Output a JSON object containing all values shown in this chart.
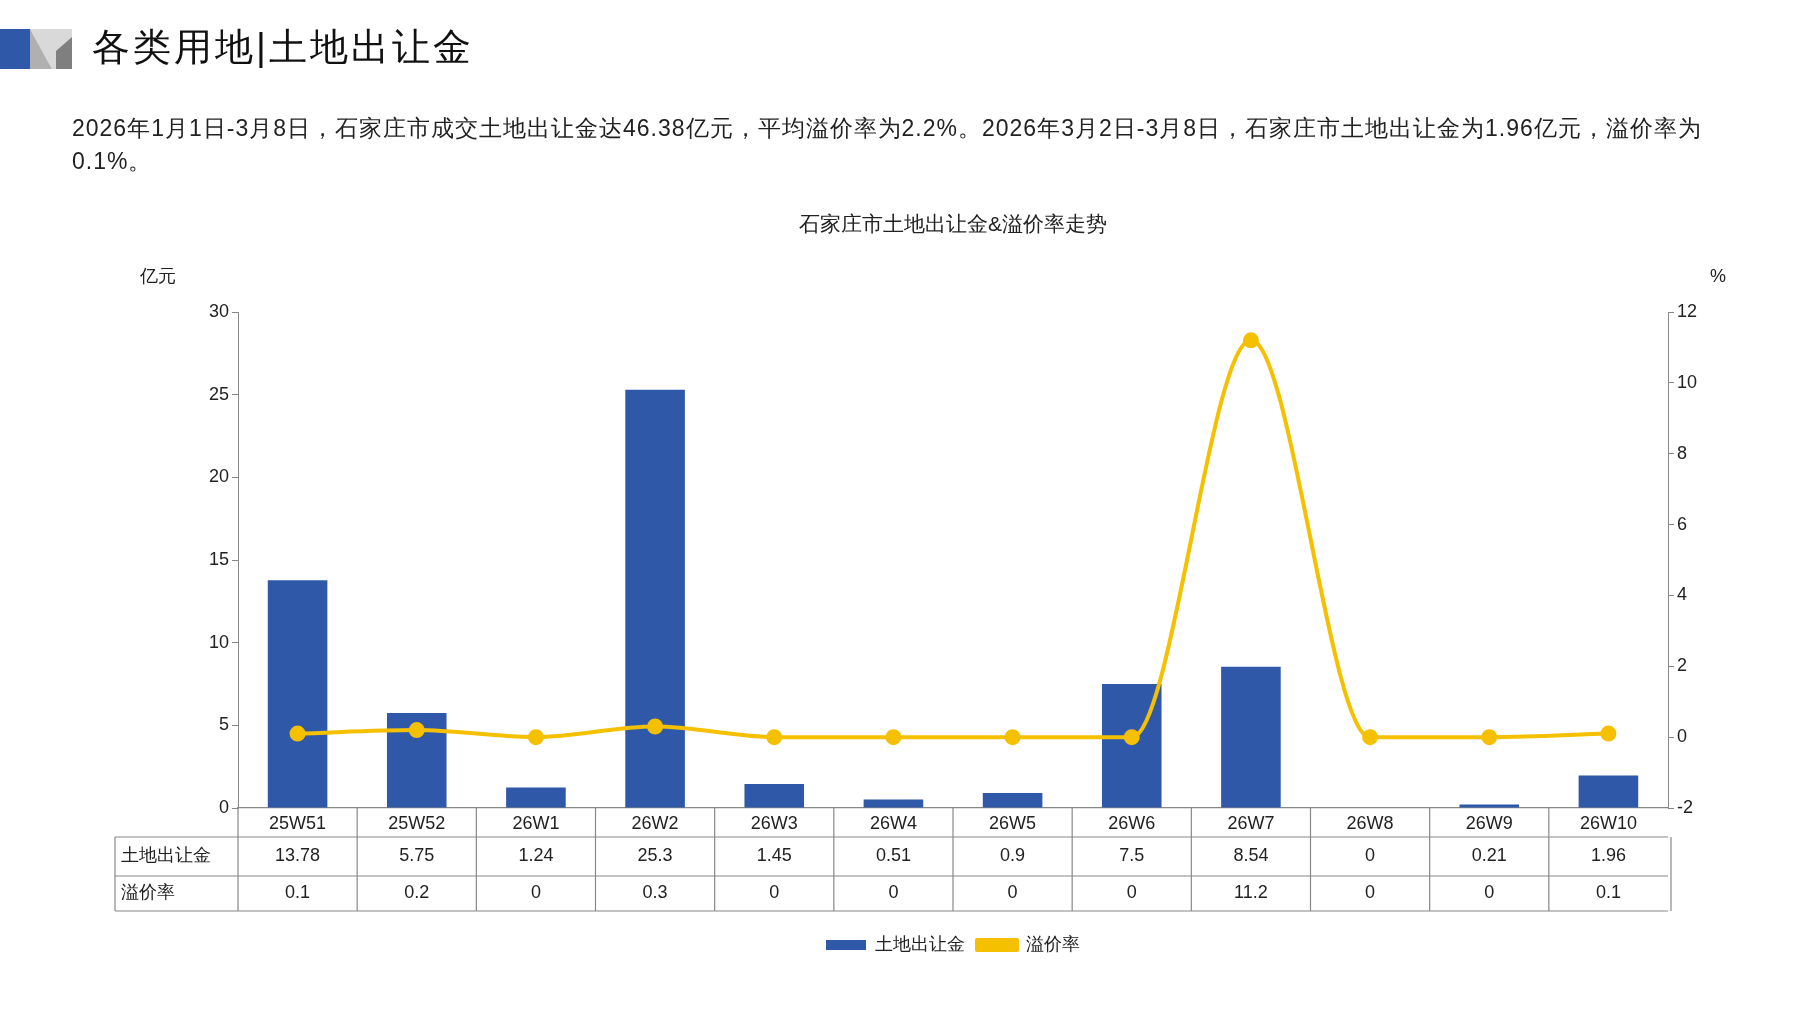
{
  "chart_data": {
    "type": "bar",
    "title": "石家庄市土地出让金&溢价率走势",
    "annotations": [
      "各类用地|土地出让金",
      "2026年1月1日-3月8日，石家庄市成交土地出让金达46.38亿元，平均溢价率为2.2%。2026年3月2日-3月8日，石家庄市土地出让金为1.96亿元，溢价率为0.1%。"
    ],
    "ylabel": "亿元",
    "y2label": "%",
    "categories": [
      "25W51",
      "25W52",
      "26W1",
      "26W2",
      "26W3",
      "26W4",
      "26W5",
      "26W6",
      "26W7",
      "26W8",
      "26W9",
      "26W10"
    ],
    "series": [
      {
        "name": "土地出让金",
        "color": "#2f58a8",
        "values": [
          13.78,
          5.75,
          1.24,
          25.3,
          1.45,
          0.51,
          0.9,
          7.5,
          8.54,
          0,
          0.21,
          1.96
        ]
      },
      {
        "name": "溢价率",
        "type": "line",
        "axis": "y2",
        "color": "#f5c000",
        "marker": "circle",
        "values": [
          0.1,
          0.2,
          0,
          0.3,
          0,
          0,
          0,
          0,
          11.2,
          0,
          0,
          0.1
        ]
      }
    ],
    "ylim": [
      0,
      30
    ],
    "yticks": [
      0,
      5,
      10,
      15,
      20,
      25,
      30
    ],
    "y2lim": [
      -2,
      12
    ],
    "y2ticks": [
      -2,
      0,
      2,
      4,
      6,
      8,
      10,
      12
    ],
    "data_labels": true,
    "grid": false,
    "legend": "bottom"
  }
}
